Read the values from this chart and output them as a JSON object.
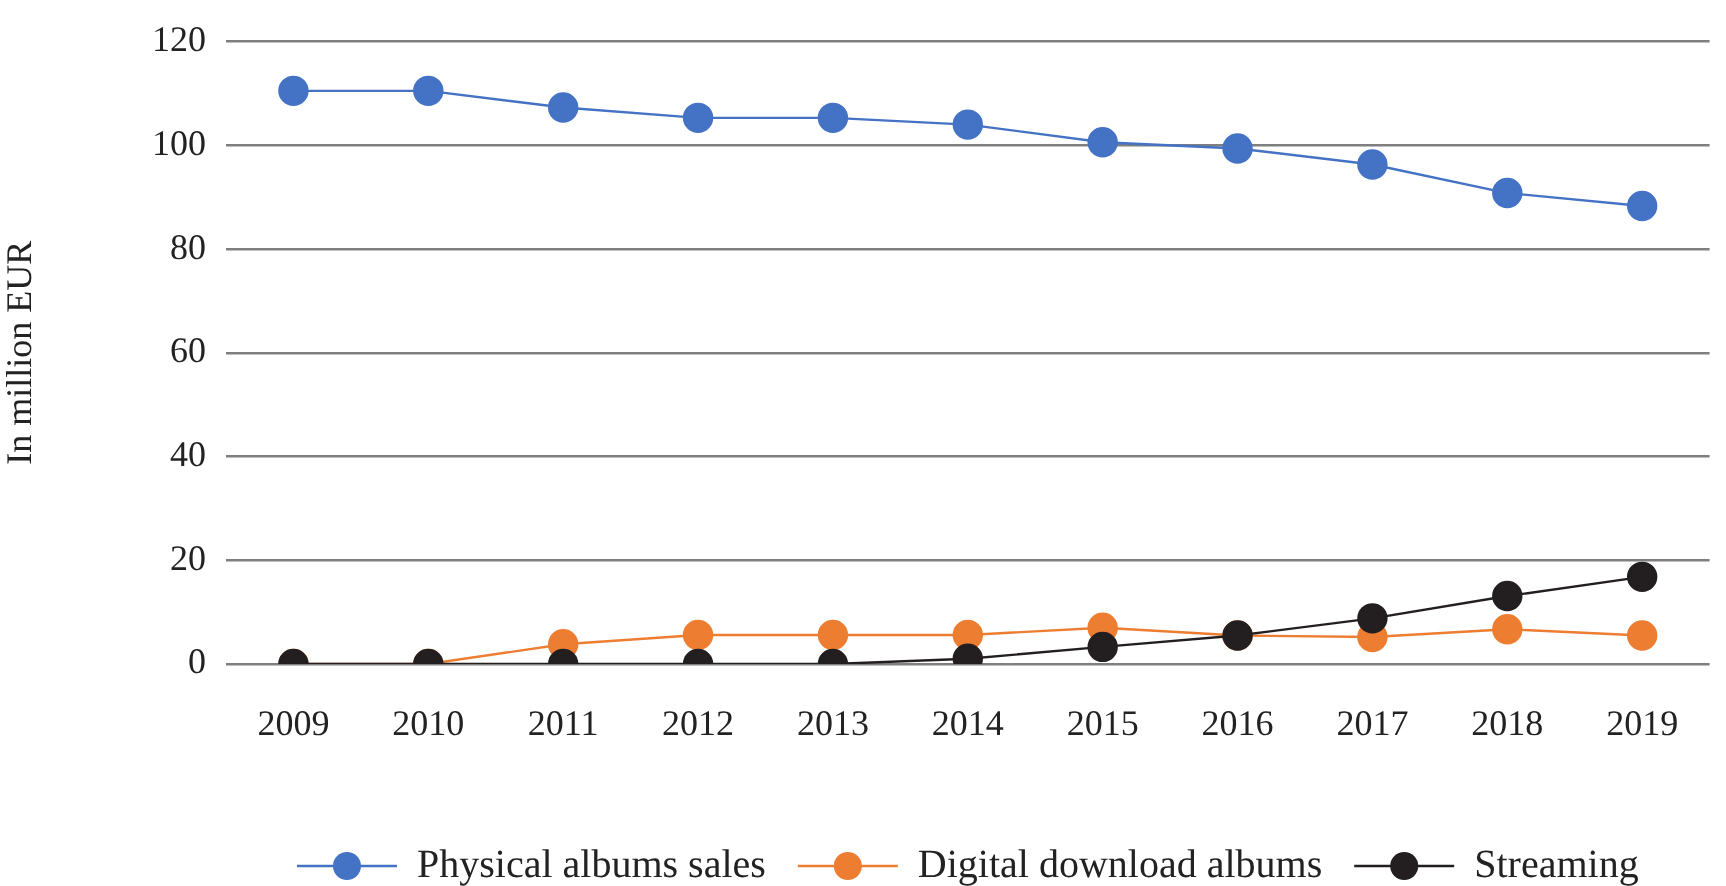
{
  "chart_data": {
    "type": "line",
    "ylabel": "In million EUR",
    "categories": [
      "2009",
      "2010",
      "2011",
      "2012",
      "2013",
      "2014",
      "2015",
      "2016",
      "2017",
      "2018",
      "2019"
    ],
    "series": [
      {
        "name": "Physical albums sales",
        "color": "#4472c4",
        "values": [
          110.5,
          110.5,
          107.3,
          105.3,
          105.3,
          104,
          100.6,
          99.4,
          96.3,
          90.8,
          88.3
        ]
      },
      {
        "name": "Digital download albums",
        "color": "#ed7d31",
        "values": [
          0,
          0,
          3.8,
          5.6,
          5.6,
          5.6,
          7,
          5.5,
          5.2,
          6.7,
          5.5
        ]
      },
      {
        "name": "Streaming",
        "color": "#231f20",
        "values": [
          0,
          0,
          0,
          0,
          0,
          1,
          3.3,
          5.5,
          8.8,
          13.1,
          16.8
        ]
      }
    ],
    "ylim": [
      0,
      120
    ],
    "yticks": [
      0,
      20,
      40,
      60,
      80,
      100,
      120
    ],
    "grid": "y",
    "legend": "bottom",
    "marker": "circle"
  }
}
